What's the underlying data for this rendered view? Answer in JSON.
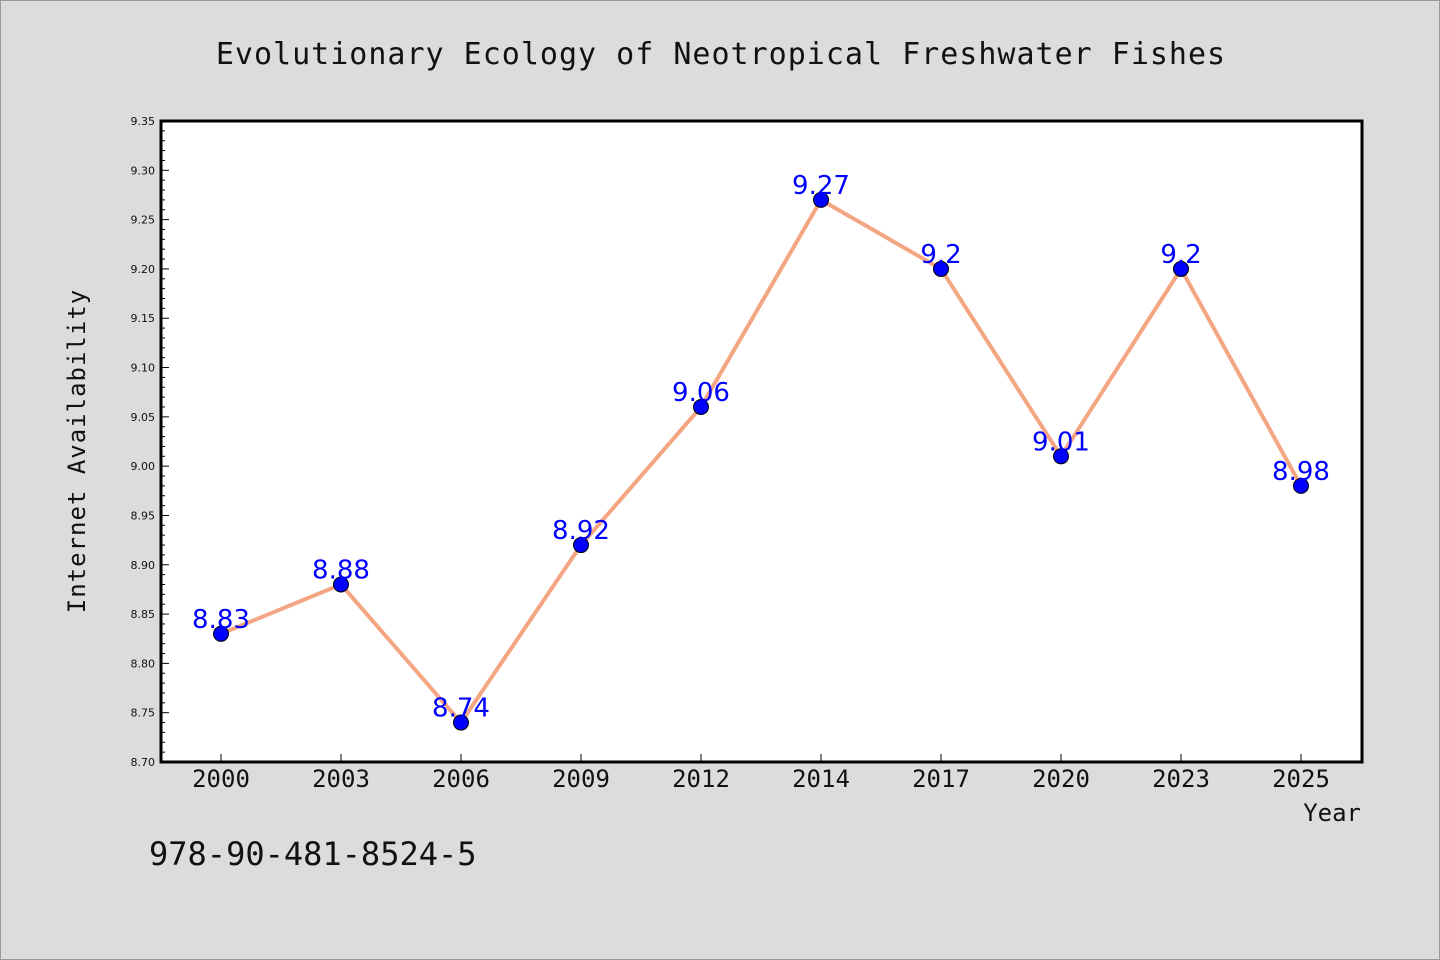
{
  "chart_data": {
    "type": "line",
    "title": "Evolutionary Ecology of Neotropical Freshwater Fishes",
    "xlabel": "Year",
    "ylabel": "Internet Availability",
    "categories": [
      "2000",
      "2003",
      "2006",
      "2009",
      "2012",
      "2014",
      "2017",
      "2020",
      "2023",
      "2025"
    ],
    "values": [
      8.83,
      8.88,
      8.74,
      8.92,
      9.06,
      9.27,
      9.2,
      9.01,
      9.2,
      8.98
    ],
    "data_labels": [
      "8.83",
      "8.88",
      "8.74",
      "8.92",
      "9.06",
      "9.27",
      "9.2",
      "9.01",
      "9.2",
      "8.98"
    ],
    "ylim": [
      8.7,
      9.35
    ],
    "yticks": [
      "8.70",
      "8.75",
      "8.80",
      "8.85",
      "8.90",
      "8.95",
      "9.00",
      "9.05",
      "9.10",
      "9.15",
      "9.20",
      "9.25",
      "9.30",
      "9.35"
    ],
    "grid": false,
    "line_color": "#f4a582",
    "marker_color": "#0000ff",
    "label_color": "#0000ff"
  },
  "footer": {
    "isbn": "978-90-481-8524-5"
  }
}
